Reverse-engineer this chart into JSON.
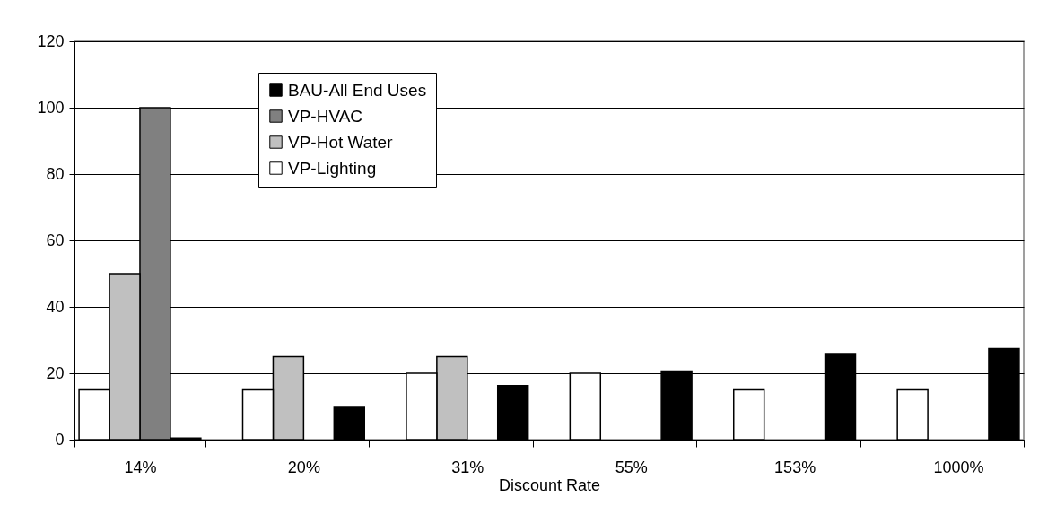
{
  "chart_data": {
    "type": "bar",
    "xlabel": "Discount Rate",
    "categories": [
      "14%",
      "20%",
      "31%",
      "55%",
      "153%",
      "1000%"
    ],
    "series": [
      {
        "name": "BAU-All End Uses",
        "color": "#000000",
        "values": [
          0.5,
          9.7,
          16.3,
          20.7,
          25.7,
          27.4
        ]
      },
      {
        "name": "VP-HVAC",
        "color": "#808080",
        "values": [
          100,
          null,
          null,
          null,
          null,
          null
        ]
      },
      {
        "name": "VP-Hot Water",
        "color": "#c0c0c0",
        "values": [
          50,
          25,
          25,
          null,
          null,
          null
        ]
      },
      {
        "name": "VP-Lighting",
        "color": "#ffffff",
        "values": [
          15,
          15,
          20,
          20,
          15,
          15
        ]
      }
    ],
    "ylim": [
      0,
      120
    ],
    "yticks": [
      0,
      20,
      40,
      60,
      80,
      100,
      120
    ],
    "grid": "y",
    "legend": "top left"
  }
}
